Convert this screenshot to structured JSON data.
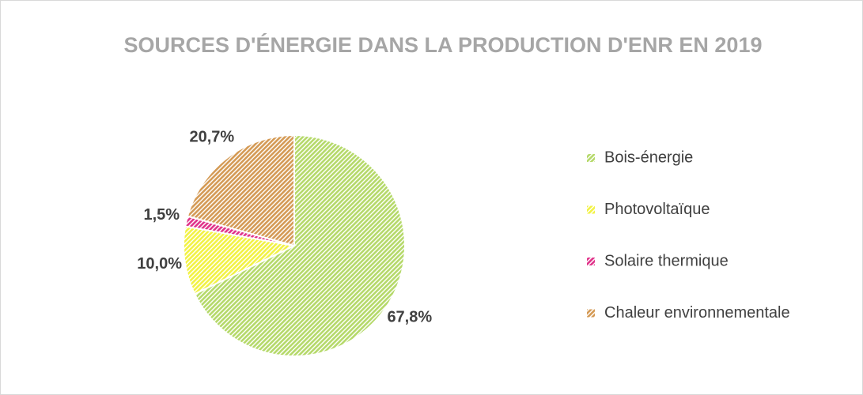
{
  "chart_data": {
    "type": "pie",
    "title": "SOURCES D'ÉNERGIE DANS LA PRODUCTION D'ENR EN 2019",
    "categories": [
      "Bois-énergie",
      "Photovoltaïque",
      "Solaire thermique",
      "Chaleur environnementale"
    ],
    "values": [
      67.8,
      10.0,
      1.5,
      20.7
    ],
    "value_labels": [
      "67,8%",
      "10,0%",
      "1,5%",
      "20,7%"
    ],
    "colors": [
      "#b5d96a",
      "#f2f244",
      "#e0338a",
      "#d49a55"
    ],
    "legend": "right"
  }
}
